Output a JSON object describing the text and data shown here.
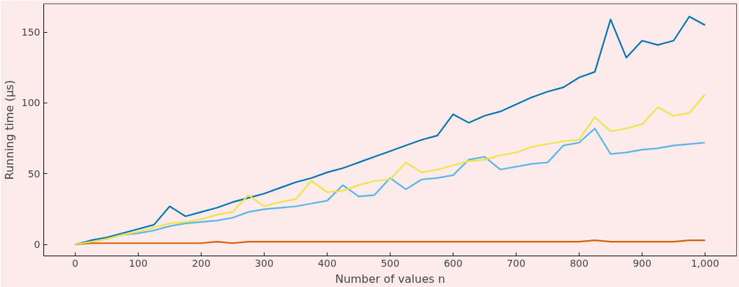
{
  "chart_data": {
    "type": "line",
    "xlabel": "Number of values n",
    "ylabel": "Running time (µs)",
    "x": [
      0,
      25,
      50,
      75,
      100,
      125,
      150,
      175,
      200,
      225,
      250,
      275,
      300,
      325,
      350,
      375,
      400,
      425,
      450,
      475,
      500,
      525,
      550,
      575,
      600,
      625,
      650,
      675,
      700,
      725,
      750,
      775,
      800,
      825,
      850,
      875,
      900,
      925,
      950,
      975,
      1000
    ],
    "series": [
      {
        "color": "#0072b2",
        "values": [
          0,
          3,
          5,
          8,
          11,
          14,
          27,
          20,
          23,
          26,
          30,
          33,
          36,
          40,
          44,
          47,
          51,
          54,
          58,
          62,
          66,
          70,
          74,
          77,
          92,
          86,
          91,
          94,
          99,
          104,
          108,
          111,
          118,
          122,
          159,
          132,
          144,
          141,
          144,
          161,
          155
        ]
      },
      {
        "color": "#56b4e9",
        "values": [
          0,
          2,
          4,
          7,
          8,
          10,
          13,
          15,
          16,
          17,
          19,
          23,
          25,
          26,
          27,
          29,
          31,
          42,
          34,
          35,
          47,
          39,
          46,
          47,
          49,
          60,
          62,
          53,
          55,
          57,
          58,
          70,
          72,
          82,
          64,
          65,
          67,
          68,
          70,
          71,
          72
        ]
      },
      {
        "color": "#d55e00",
        "values": [
          0,
          1,
          1,
          1,
          1,
          1,
          1,
          1,
          1,
          2,
          1,
          2,
          2,
          2,
          2,
          2,
          2,
          2,
          2,
          2,
          2,
          2,
          2,
          2,
          2,
          2,
          2,
          2,
          2,
          2,
          2,
          2,
          2,
          3,
          2,
          2,
          2,
          2,
          2,
          3,
          3
        ]
      },
      {
        "color": "#f0e442",
        "values": [
          0,
          2,
          4,
          7,
          9,
          12,
          15,
          16,
          18,
          21,
          23,
          35,
          27,
          30,
          32,
          45,
          37,
          38,
          42,
          45,
          46,
          58,
          51,
          53,
          56,
          59,
          60,
          63,
          65,
          69,
          71,
          73,
          74,
          90,
          80,
          82,
          85,
          97,
          91,
          93,
          106
        ]
      }
    ],
    "xlim": [
      -50,
      1050
    ],
    "ylim": [
      -8,
      170
    ],
    "xticks": [
      0,
      100,
      200,
      300,
      400,
      500,
      600,
      700,
      800,
      900,
      {
        "value": 1000,
        "label": "1,000"
      }
    ],
    "yticks": [
      0,
      50,
      100,
      150
    ],
    "grid": false,
    "marker": "none",
    "line_style": "solid"
  }
}
